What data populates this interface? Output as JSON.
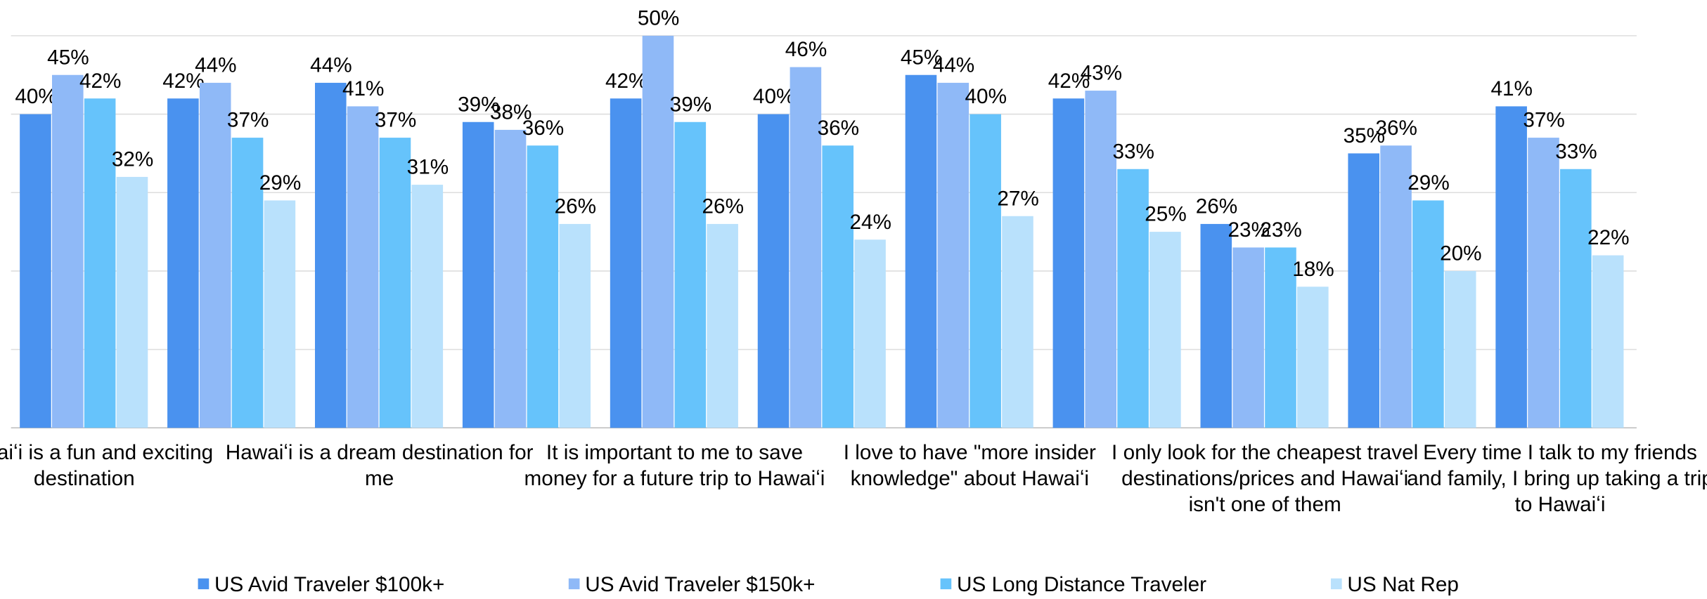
{
  "chart_data": {
    "type": "bar",
    "categories": [
      "Hawaiʻi is a fun and exciting destination",
      null,
      "Hawaiʻi is a dream destination for me",
      null,
      "It is important to me to save money for a future trip to Hawaiʻi",
      null,
      "I love to have \"more insider knowledge\" about Hawaiʻi",
      null,
      "I only look for the cheapest travel destinations/prices and Hawaiʻi isn't one of them",
      null,
      "Every time I talk to my friends and family, I bring up taking a trip to Hawaiʻi"
    ],
    "series": [
      {
        "name": "US Avid Traveler $100k+",
        "color": "#4a92ef",
        "values": [
          40,
          42,
          44,
          39,
          42,
          40,
          45,
          42,
          26,
          35,
          41
        ],
        "value_labels": [
          "40%",
          "42%",
          "44%",
          "39%",
          "42%",
          "40%",
          "45%",
          "42%",
          "26%",
          "35%",
          "41%"
        ]
      },
      {
        "name": "US Avid Traveler $150k+",
        "color": "#8fb9f7",
        "values": [
          45,
          44,
          41,
          38,
          50,
          46,
          44,
          43,
          23,
          36,
          37
        ],
        "value_labels": [
          "45%",
          "44%",
          "41%",
          "38%",
          "50%",
          "46%",
          "44%",
          "43%",
          "23%",
          "36%",
          "37%"
        ]
      },
      {
        "name": "US Long Distance Traveler",
        "color": "#66c3fb",
        "values": [
          42,
          37,
          37,
          36,
          39,
          36,
          40,
          33,
          23,
          29,
          33
        ],
        "value_labels": [
          "42%",
          "37%",
          "37%",
          "36%",
          "39%",
          "36%",
          "40%",
          "33%",
          "23%",
          "29%",
          "33%"
        ]
      },
      {
        "name": "US Nat Rep",
        "color": "#b9e1fc",
        "values": [
          32,
          29,
          31,
          26,
          26,
          24,
          27,
          25,
          18,
          20,
          22
        ],
        "value_labels": [
          "32%",
          "29%",
          "31%",
          "26%",
          "26%",
          "24%",
          "27%",
          "25%",
          "18%",
          "20%",
          "22%"
        ]
      }
    ],
    "ylim": [
      0,
      50
    ],
    "yticks": [
      0,
      10,
      20,
      30,
      40,
      50
    ],
    "grid": true,
    "legend": "bottom"
  }
}
